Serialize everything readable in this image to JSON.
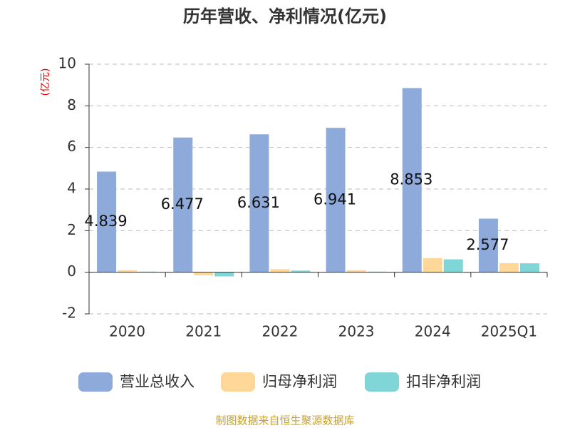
{
  "chart_data": {
    "type": "bar",
    "title": "历年营收、净利情况(亿元)",
    "y_label": "(亿元)",
    "categories": [
      "2020",
      "2021",
      "2022",
      "2023",
      "2024",
      "2025Q1"
    ],
    "series": [
      {
        "name": "营业总收入",
        "color": "#8eaadb",
        "values": [
          4.839,
          6.477,
          6.631,
          6.941,
          8.853,
          2.577
        ]
      },
      {
        "name": "归母净利润",
        "color": "#ffd799",
        "values": [
          0.1,
          -0.15,
          0.15,
          0.1,
          0.68,
          0.44
        ]
      },
      {
        "name": "扣非净利润",
        "color": "#80d5d6",
        "values": [
          0.03,
          -0.2,
          0.08,
          0.03,
          0.62,
          0.43
        ]
      }
    ],
    "ylim": [
      -2,
      10
    ],
    "yticks": [
      -2,
      0,
      2,
      4,
      6,
      8,
      10
    ],
    "grid": true,
    "legend": "bottom",
    "source": "制图数据来自恒生聚源数据库"
  }
}
